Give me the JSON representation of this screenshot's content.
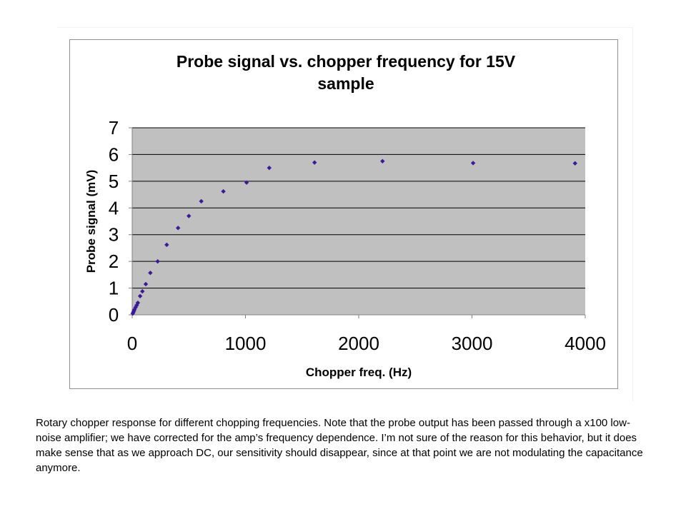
{
  "chart_data": {
    "type": "scatter",
    "title": "Probe signal vs. chopper frequency for 15V sample",
    "title_lines": [
      "Probe signal vs. chopper frequency for 15V",
      "sample"
    ],
    "xlabel": "Chopper freq. (Hz)",
    "ylabel": "Probe signal (mV)",
    "xlim": [
      0,
      4000
    ],
    "ylim": [
      0,
      7
    ],
    "xticks": [
      0,
      1000,
      2000,
      3000,
      4000
    ],
    "yticks": [
      0,
      1,
      2,
      3,
      4,
      5,
      6,
      7
    ],
    "grid": "horizontal",
    "legend": "none",
    "colors": {
      "plot_bg": "#c0c0c0",
      "grid": "#000000",
      "marker": "#3c1a96",
      "axis": "#808080"
    },
    "points": [
      {
        "x": 5,
        "y": 0.05
      },
      {
        "x": 10,
        "y": 0.1
      },
      {
        "x": 15,
        "y": 0.15
      },
      {
        "x": 20,
        "y": 0.2
      },
      {
        "x": 30,
        "y": 0.28
      },
      {
        "x": 40,
        "y": 0.36
      },
      {
        "x": 50,
        "y": 0.45
      },
      {
        "x": 70,
        "y": 0.7
      },
      {
        "x": 90,
        "y": 0.88
      },
      {
        "x": 120,
        "y": 1.15
      },
      {
        "x": 160,
        "y": 1.57
      },
      {
        "x": 225,
        "y": 2.0
      },
      {
        "x": 305,
        "y": 2.62
      },
      {
        "x": 405,
        "y": 3.25
      },
      {
        "x": 500,
        "y": 3.7
      },
      {
        "x": 610,
        "y": 4.25
      },
      {
        "x": 805,
        "y": 4.62
      },
      {
        "x": 1010,
        "y": 4.95
      },
      {
        "x": 1210,
        "y": 5.5
      },
      {
        "x": 1610,
        "y": 5.7
      },
      {
        "x": 2210,
        "y": 5.75
      },
      {
        "x": 3010,
        "y": 5.68
      },
      {
        "x": 3910,
        "y": 5.67
      }
    ]
  },
  "caption": "Rotary chopper response for different chopping frequencies.  Note that the probe output has been passed through a x100 low-noise amplifier; we have corrected for the amp’s frequency dependence.  I’m not sure of the reason for this behavior, but it does make sense that as we approach DC, our sensitivity should disappear, since at that point we are not modulating the capacitance anymore."
}
